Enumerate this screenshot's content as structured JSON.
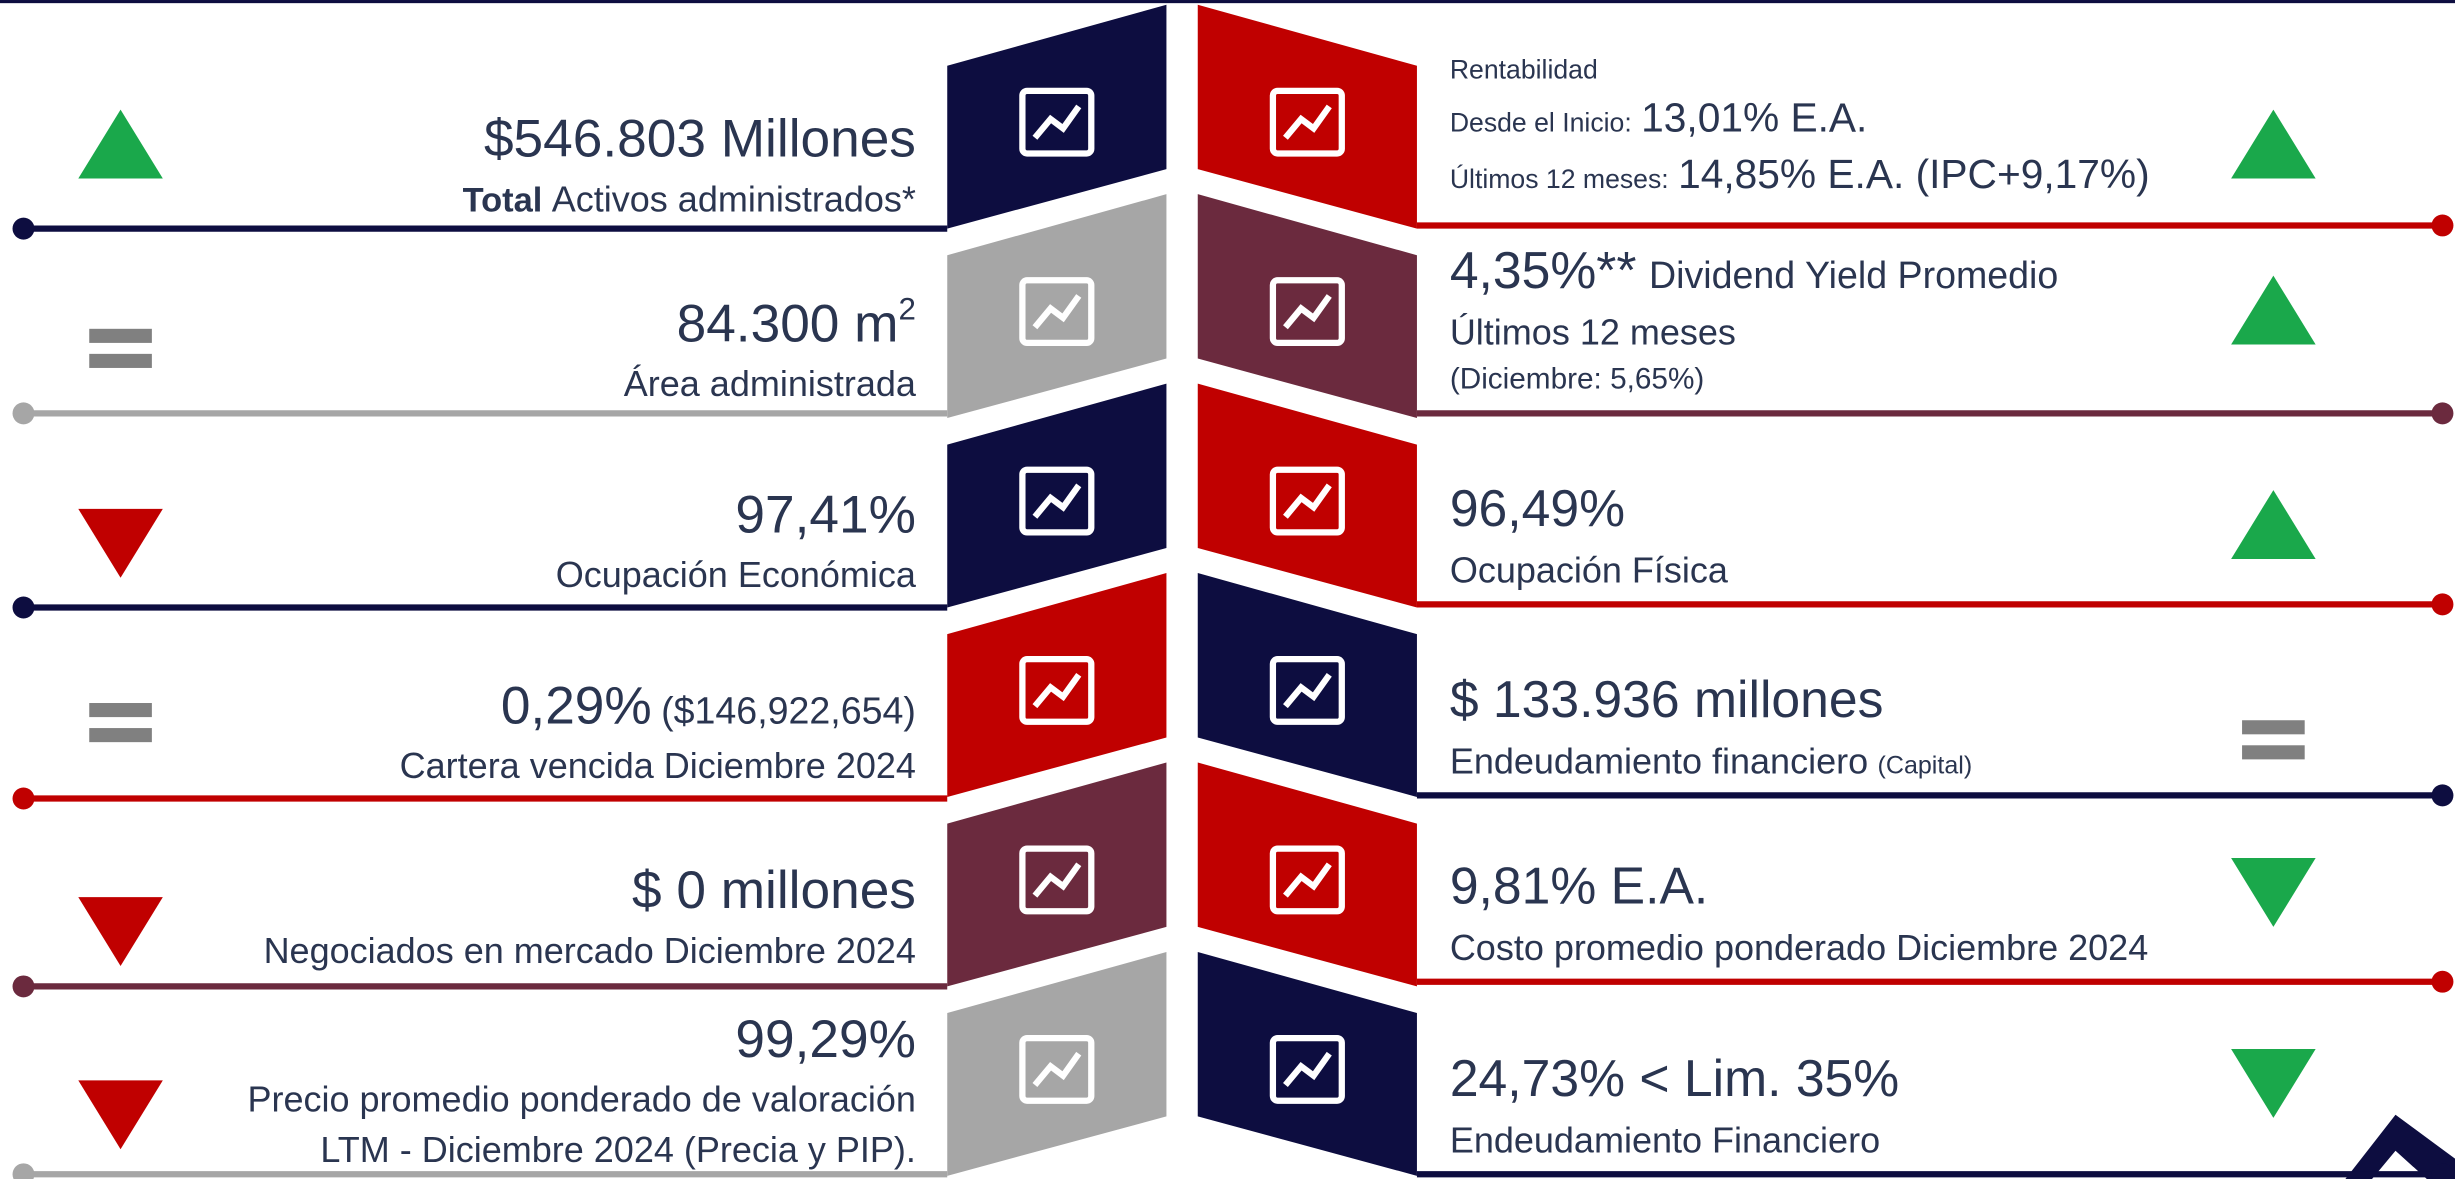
{
  "left": [
    {
      "value": "$546.803 Millones",
      "label_bold": "Total",
      "label": "Activos administrados*",
      "trend": "up",
      "trend_color": "#1aa84b",
      "tile_color": "#0d0d40",
      "line_color": "#0d0d40"
    },
    {
      "value": "84.300 m",
      "value_sup": "2",
      "label": "Área administrada",
      "trend": "equal",
      "trend_color": "#808080",
      "tile_color": "#a6a6a6",
      "line_color": "#a6a6a6"
    },
    {
      "value": "97,41%",
      "label": "Ocupación Económica",
      "trend": "down",
      "trend_color": "#c00000",
      "tile_color": "#0d0d40",
      "line_color": "#0d0d40"
    },
    {
      "value": "0,29%",
      "value_note": "($146,922,654)",
      "label": "Cartera vencida Diciembre 2024",
      "trend": "equal",
      "trend_color": "#808080",
      "tile_color": "#c00000",
      "line_color": "#c00000"
    },
    {
      "value": "$ 0 millones",
      "label": "Negociados en mercado Diciembre 2024",
      "trend": "down",
      "trend_color": "#c00000",
      "tile_color": "#6b2a3e",
      "line_color": "#6b2a3e"
    },
    {
      "value": "99,29%",
      "label": "Precio promedio ponderado de valoración",
      "label_line2": "LTM - Diciembre 2024 (Precia y PIP).",
      "trend": "down",
      "trend_color": "#c00000",
      "tile_color": "#a6a6a6",
      "line_color": "#a6a6a6"
    }
  ],
  "right": [
    {
      "heading": "Rentabilidad",
      "line1_label": "Desde el Inicio:",
      "line1_value": "13,01% E.A.",
      "line2_label": "Últimos 12 meses:",
      "line2_value": "14,85% E.A. (IPC+9,17%)",
      "trend": "up",
      "trend_color": "#1aa84b",
      "tile_color": "#c00000",
      "line_color": "#c00000"
    },
    {
      "value": "4,35%**",
      "label": "Dividend Yield Promedio",
      "label_line2": "Últimos 12 meses",
      "label_line3": "(Diciembre: 5,65%)",
      "trend": "up",
      "trend_color": "#1aa84b",
      "tile_color": "#6b2a3e",
      "line_color": "#6b2a3e"
    },
    {
      "value": "96,49%",
      "label": "Ocupación Física",
      "trend": "up",
      "trend_color": "#1aa84b",
      "tile_color": "#c00000",
      "line_color": "#c00000"
    },
    {
      "value": "$ 133.936 millones",
      "label": "Endeudamiento financiero",
      "label_note": "(Capital)",
      "trend": "equal",
      "trend_color": "#808080",
      "tile_color": "#0d0d40",
      "line_color": "#0d0d40"
    },
    {
      "value": "9,81% E.A.",
      "label": "Costo promedio ponderado Diciembre 2024",
      "trend": "down",
      "trend_color": "#1aa84b",
      "tile_color": "#c00000",
      "line_color": "#c00000"
    },
    {
      "value": "24,73% < Lim. 35%",
      "label": "Endeudamiento Financiero",
      "trend": "down",
      "trend_color": "#1aa84b",
      "tile_color": "#0d0d40",
      "line_color": "#0d0d40"
    }
  ]
}
